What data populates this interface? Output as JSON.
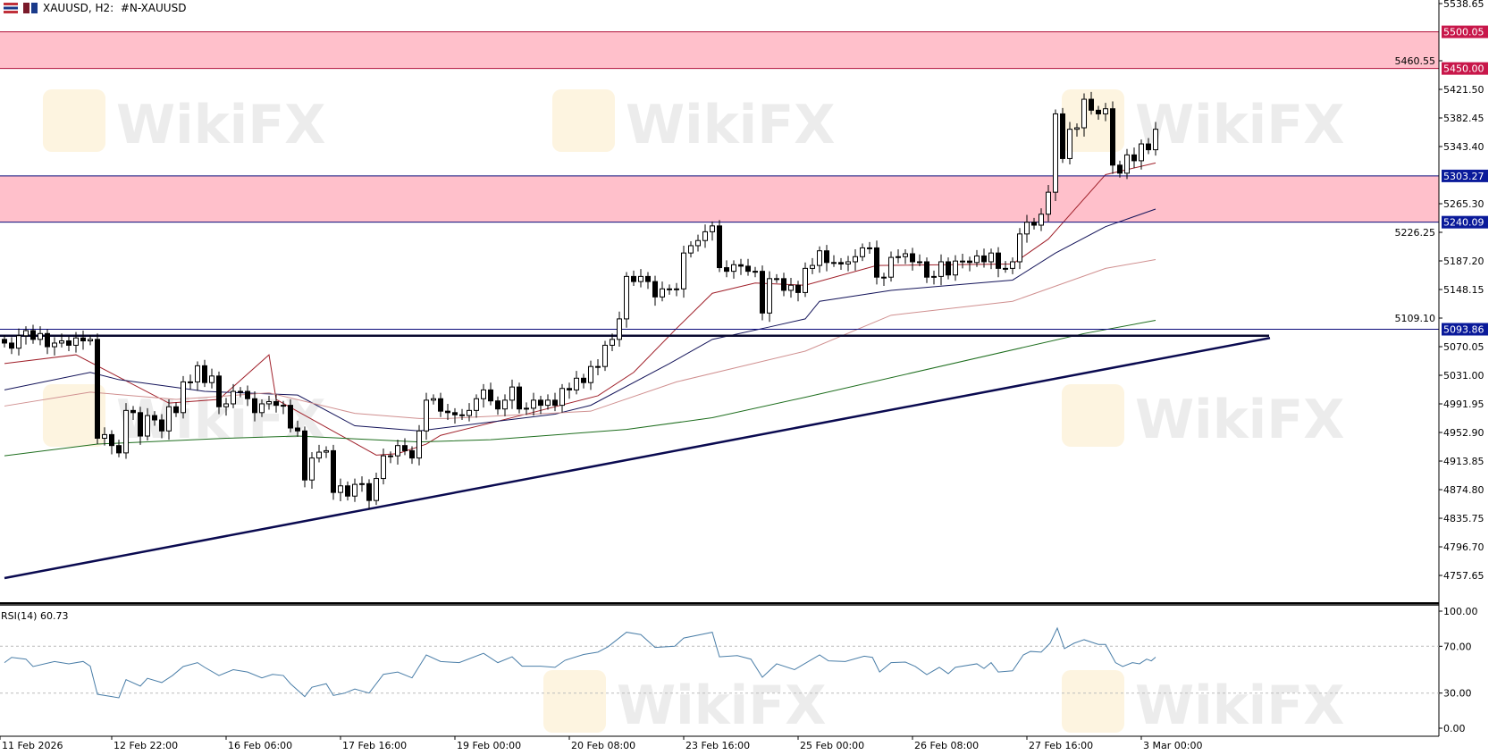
{
  "header": {
    "symbol_label": "XAUUSD, H2:  #N-XAUUSD",
    "icons": [
      "chart-menu-icon",
      "symbol-flag-icon"
    ]
  },
  "watermark": {
    "text": "WikiFX"
  },
  "colors": {
    "zone_fill": "#ffc0cb",
    "upper_zone_line": "#b0103a",
    "upper_label_bg": "#c8174a",
    "level_line": "#0a0a7a",
    "level_label_bg": "#0a1a9a",
    "trendline": "#0a0a50",
    "ma_fast": "#a0202a",
    "ma_medium": "#14145a",
    "ma_slow": "#d09090",
    "ma_long": "#1e6e1e",
    "rsi_line": "#4a7ea8",
    "bull_body": "#ffffff",
    "bear_body": "#000000"
  },
  "price_axis": {
    "ticks": [
      "5538.65",
      "5460.55",
      "5421.50",
      "5382.45",
      "5343.40",
      "5265.30",
      "5226.25",
      "5187.20",
      "5148.15",
      "5109.10",
      "5070.05",
      "5031.00",
      "4991.95",
      "4952.90",
      "4913.85",
      "4874.80",
      "4835.75",
      "4796.70",
      "4757.65"
    ],
    "levels": [
      {
        "label": "5500.05",
        "price": 5500.05,
        "style": "upper"
      },
      {
        "label": "5450.00",
        "price": 5450.0,
        "style": "upper"
      },
      {
        "label": "5303.27",
        "price": 5303.27,
        "style": "level"
      },
      {
        "label": "5240.09",
        "price": 5240.09,
        "style": "level"
      },
      {
        "label": "5093.86",
        "price": 5093.86,
        "style": "level"
      }
    ]
  },
  "chart_data": {
    "type": "candlestick",
    "symbol": "XAUUSD",
    "timeframe": "H2",
    "zones": [
      {
        "from": 5450.0,
        "to": 5500.05
      },
      {
        "from": 5240.09,
        "to": 5303.27
      }
    ],
    "support_line_price": 5085,
    "trendline": [
      {
        "bar": 0,
        "price": 4754
      },
      {
        "bar": 177,
        "price": 5082
      }
    ],
    "closes": [
      5075,
      5068,
      5085,
      5092,
      5080,
      5088,
      5070,
      5075,
      5078,
      5072,
      5082,
      5078,
      5080,
      4945,
      4950,
      4935,
      4925,
      4983,
      4980,
      4948,
      4976,
      4970,
      4955,
      4988,
      4980,
      5022,
      5022,
      5044,
      5021,
      5030,
      4988,
      4992,
      5009,
      5009,
      4999,
      4980,
      4992,
      4995,
      4990,
      4990,
      4959,
      4955,
      4888,
      4918,
      4926,
      4928,
      4871,
      4880,
      4866,
      4882,
      4883,
      4860,
      4890,
      4921,
      4921,
      4935,
      4928,
      4918,
      4955,
      4997,
      4999,
      4982,
      4980,
      4977,
      4976,
      4983,
      4999,
      5011,
      4996,
      4985,
      4997,
      5015,
      4985,
      4986,
      4997,
      4990,
      4997,
      4990,
      5013,
      5011,
      5027,
      5021,
      5043,
      5043,
      5072,
      5080,
      5108,
      5166,
      5159,
      5166,
      5159,
      5138,
      5149,
      5149,
      5149,
      5198,
      5208,
      5215,
      5227,
      5235,
      5178,
      5173,
      5182,
      5180,
      5173,
      5173,
      5116,
      5163,
      5163,
      5147,
      5154,
      5144,
      5177,
      5181,
      5201,
      5185,
      5185,
      5183,
      5186,
      5193,
      5205,
      5205,
      5165,
      5165,
      5192,
      5193,
      5197,
      5186,
      5186,
      5165,
      5166,
      5186,
      5168,
      5187,
      5187,
      5185,
      5194,
      5186,
      5198,
      5177,
      5177,
      5186,
      5224,
      5240,
      5236,
      5251,
      5281,
      5388,
      5327,
      5367,
      5369,
      5408,
      5393,
      5388,
      5395,
      5318,
      5307,
      5332,
      5324,
      5347,
      5339,
      5367
    ],
    "moving_averages": [
      {
        "color_key": "ma_fast",
        "points": [
          [
            0,
            5047
          ],
          [
            10,
            5059
          ],
          [
            37,
            5059
          ],
          [
            23,
            4993
          ],
          [
            30,
            4998
          ],
          [
            38,
            4998
          ],
          [
            52,
            4922
          ],
          [
            55,
            4924
          ],
          [
            59,
            4937
          ],
          [
            61,
            4949
          ],
          [
            73,
            4978
          ],
          [
            83,
            5003
          ],
          [
            88,
            5035
          ],
          [
            94,
            5095
          ],
          [
            99,
            5143
          ],
          [
            105,
            5157
          ],
          [
            112,
            5154
          ],
          [
            122,
            5181
          ],
          [
            141,
            5183
          ],
          [
            146,
            5217
          ],
          [
            154,
            5305
          ],
          [
            161,
            5321
          ]
        ]
      },
      {
        "color_key": "ma_medium",
        "points": [
          [
            0,
            5011
          ],
          [
            12,
            5035
          ],
          [
            16,
            5025
          ],
          [
            28,
            5009
          ],
          [
            41,
            5004
          ],
          [
            49,
            4962
          ],
          [
            58,
            4955
          ],
          [
            62,
            4960
          ],
          [
            77,
            4978
          ],
          [
            82,
            4990
          ],
          [
            93,
            5047
          ],
          [
            99,
            5080
          ],
          [
            107,
            5097
          ],
          [
            112,
            5108
          ],
          [
            114,
            5132
          ],
          [
            124,
            5147
          ],
          [
            141,
            5161
          ],
          [
            147,
            5198
          ],
          [
            154,
            5234
          ],
          [
            161,
            5258
          ]
        ]
      },
      {
        "color_key": "ma_slow",
        "points": [
          [
            0,
            4989
          ],
          [
            12,
            5008
          ],
          [
            24,
            4998
          ],
          [
            37,
            5007
          ],
          [
            49,
            4979
          ],
          [
            58,
            4972
          ],
          [
            62,
            4972
          ],
          [
            82,
            4982
          ],
          [
            94,
            5022
          ],
          [
            112,
            5064
          ],
          [
            124,
            5113
          ],
          [
            141,
            5132
          ],
          [
            154,
            5177
          ],
          [
            161,
            5189
          ]
        ]
      },
      {
        "color_key": "ma_long",
        "points": [
          [
            0,
            4921
          ],
          [
            13,
            4937
          ],
          [
            31,
            4945
          ],
          [
            41,
            4948
          ],
          [
            58,
            4940
          ],
          [
            68,
            4943
          ],
          [
            87,
            4957
          ],
          [
            99,
            4973
          ],
          [
            112,
            5001
          ],
          [
            151,
            5088
          ],
          [
            161,
            5106
          ]
        ]
      }
    ],
    "time_labels": [
      {
        "bar": 0,
        "text": "11 Feb 2026"
      },
      {
        "bar": 15,
        "text": "12 Feb 22:00"
      },
      {
        "bar": 31,
        "text": "16 Feb 06:00"
      },
      {
        "bar": 47,
        "text": "17 Feb 16:00"
      },
      {
        "bar": 63,
        "text": "19 Feb 00:00"
      },
      {
        "bar": 79,
        "text": "20 Feb 08:00"
      },
      {
        "bar": 95,
        "text": "23 Feb 16:00"
      },
      {
        "bar": 111,
        "text": "25 Feb 00:00"
      },
      {
        "bar": 127,
        "text": "26 Feb 08:00"
      },
      {
        "bar": 143,
        "text": "27 Feb 16:00"
      },
      {
        "bar": 159,
        "text": "3 Mar 00:00"
      }
    ]
  },
  "rsi": {
    "label": "RSI(14) 60.73",
    "levels": [
      {
        "value": 70,
        "label": "70.00"
      },
      {
        "value": 30,
        "label": "30.00"
      }
    ],
    "axis_labels": [
      {
        "value": 100,
        "label": "100.00"
      },
      {
        "value": 70,
        "label": "70.00"
      },
      {
        "value": 30,
        "label": "30.00"
      },
      {
        "value": 0,
        "label": "0.00"
      }
    ],
    "points": [
      [
        0,
        56
      ],
      [
        1,
        60.5
      ],
      [
        3,
        59
      ],
      [
        4,
        52.7
      ],
      [
        7,
        57
      ],
      [
        9,
        55
      ],
      [
        11,
        57
      ],
      [
        12,
        53
      ],
      [
        13,
        29
      ],
      [
        15,
        27
      ],
      [
        16,
        26
      ],
      [
        17,
        41.5
      ],
      [
        19,
        36
      ],
      [
        20,
        42.6
      ],
      [
        22,
        39
      ],
      [
        23.5,
        45
      ],
      [
        25,
        52.7
      ],
      [
        27,
        56
      ],
      [
        28,
        52
      ],
      [
        30,
        45
      ],
      [
        32,
        50
      ],
      [
        34,
        48
      ],
      [
        36,
        43
      ],
      [
        37.5,
        46
      ],
      [
        39,
        45
      ],
      [
        40,
        38
      ],
      [
        42,
        27
      ],
      [
        43,
        35
      ],
      [
        45,
        38
      ],
      [
        46,
        28
      ],
      [
        47.6,
        30
      ],
      [
        49,
        33.5
      ],
      [
        51,
        30
      ],
      [
        53,
        46
      ],
      [
        55,
        48
      ],
      [
        57,
        43
      ],
      [
        59,
        62.6
      ],
      [
        61,
        57
      ],
      [
        63.6,
        56
      ],
      [
        67,
        64
      ],
      [
        69,
        56
      ],
      [
        71,
        61
      ],
      [
        72.4,
        53
      ],
      [
        75,
        53
      ],
      [
        77,
        52
      ],
      [
        78.4,
        58
      ],
      [
        81,
        63
      ],
      [
        83,
        65
      ],
      [
        84.4,
        69.5
      ],
      [
        87,
        82
      ],
      [
        89,
        80
      ],
      [
        91,
        69
      ],
      [
        93.75,
        70
      ],
      [
        95,
        77
      ],
      [
        99,
        82
      ],
      [
        100,
        61
      ],
      [
        102.5,
        62
      ],
      [
        104.4,
        59
      ],
      [
        106,
        43.5
      ],
      [
        108,
        55
      ],
      [
        110.5,
        50
      ],
      [
        114,
        62.6
      ],
      [
        115.25,
        57.5
      ],
      [
        117.6,
        57
      ],
      [
        120.25,
        61.5
      ],
      [
        121.4,
        60.5
      ],
      [
        122.4,
        48
      ],
      [
        124,
        56
      ],
      [
        126,
        56.5
      ],
      [
        127.4,
        52.7
      ],
      [
        129,
        45.8
      ],
      [
        130.75,
        52
      ],
      [
        132,
        46.6
      ],
      [
        133,
        52
      ],
      [
        136,
        55
      ],
      [
        137,
        51
      ],
      [
        138,
        56
      ],
      [
        139,
        48
      ],
      [
        141,
        49
      ],
      [
        142.5,
        62.6
      ],
      [
        143.5,
        65.6
      ],
      [
        145,
        65
      ],
      [
        146.25,
        72.6
      ],
      [
        147.25,
        85.5
      ],
      [
        148.25,
        68
      ],
      [
        149.6,
        72.6
      ],
      [
        151,
        75.6
      ],
      [
        153,
        71.6
      ],
      [
        154,
        71.6
      ],
      [
        155.4,
        56
      ],
      [
        156.4,
        52.7
      ],
      [
        157.75,
        56
      ],
      [
        158.75,
        55
      ],
      [
        159.75,
        59
      ],
      [
        160.4,
        57.5
      ],
      [
        161,
        60.73
      ]
    ]
  }
}
